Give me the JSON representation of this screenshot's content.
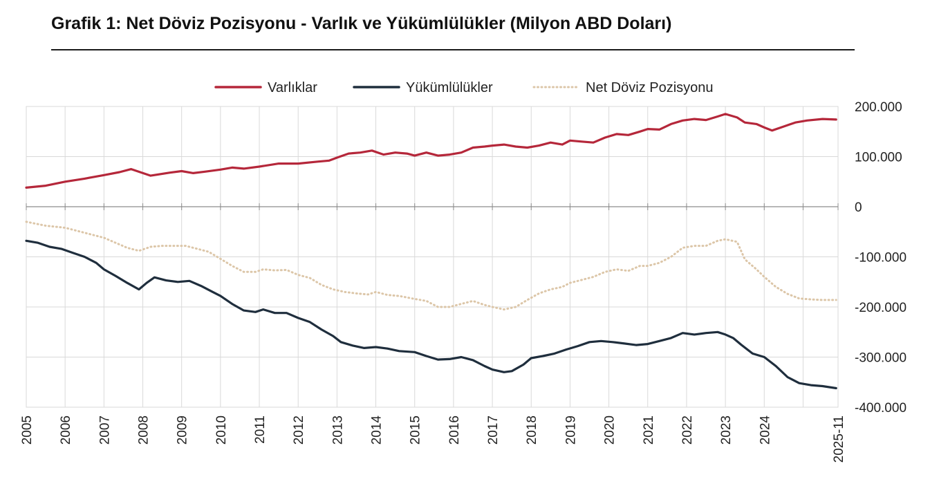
{
  "chart_data": {
    "type": "line",
    "title": "Grafik 1: Net Döviz Pozisyonu - Varlık ve Yükümlülükler (Milyon ABD Doları)",
    "xlabel": "",
    "ylabel": "",
    "x_tick_labels": [
      "2005",
      "2006",
      "2007",
      "2008",
      "2009",
      "2010",
      "2011",
      "2012",
      "2013",
      "2014",
      "2015",
      "2016",
      "2017",
      "2018",
      "2019",
      "2020",
      "2021",
      "2022",
      "2023",
      "2024",
      "2025-11"
    ],
    "y_tick_labels": [
      "200.000",
      "100.000",
      "0",
      "-100.000",
      "-200.000",
      "-300.000",
      "-400.000"
    ],
    "y_ticks": [
      200000,
      100000,
      0,
      -100000,
      -200000,
      -300000,
      -400000
    ],
    "ylim": [
      -400000,
      200000
    ],
    "xlim": [
      2005.0,
      2025.9
    ],
    "grid": true,
    "legend_position": "top",
    "series": [
      {
        "name": "Varlıklar",
        "color": "#b5273a",
        "style": "solid",
        "points": [
          [
            2005.0,
            38000
          ],
          [
            2005.5,
            42000
          ],
          [
            2006.0,
            50000
          ],
          [
            2006.5,
            56000
          ],
          [
            2007.0,
            63000
          ],
          [
            2007.4,
            69000
          ],
          [
            2007.7,
            75000
          ],
          [
            2008.2,
            62000
          ],
          [
            2008.7,
            68000
          ],
          [
            2009.0,
            71000
          ],
          [
            2009.3,
            67000
          ],
          [
            2009.6,
            70000
          ],
          [
            2010.0,
            74000
          ],
          [
            2010.3,
            78000
          ],
          [
            2010.6,
            76000
          ],
          [
            2011.0,
            80000
          ],
          [
            2011.5,
            86000
          ],
          [
            2012.0,
            86000
          ],
          [
            2012.5,
            90000
          ],
          [
            2012.8,
            92000
          ],
          [
            2013.0,
            98000
          ],
          [
            2013.3,
            106000
          ],
          [
            2013.6,
            108000
          ],
          [
            2013.9,
            112000
          ],
          [
            2014.2,
            104000
          ],
          [
            2014.5,
            108000
          ],
          [
            2014.8,
            106000
          ],
          [
            2015.0,
            102000
          ],
          [
            2015.3,
            108000
          ],
          [
            2015.6,
            102000
          ],
          [
            2015.9,
            104000
          ],
          [
            2016.2,
            108000
          ],
          [
            2016.5,
            118000
          ],
          [
            2016.8,
            120000
          ],
          [
            2017.0,
            122000
          ],
          [
            2017.3,
            124000
          ],
          [
            2017.6,
            120000
          ],
          [
            2017.9,
            118000
          ],
          [
            2018.2,
            122000
          ],
          [
            2018.5,
            128000
          ],
          [
            2018.8,
            124000
          ],
          [
            2019.0,
            132000
          ],
          [
            2019.3,
            130000
          ],
          [
            2019.6,
            128000
          ],
          [
            2019.9,
            138000
          ],
          [
            2020.2,
            145000
          ],
          [
            2020.5,
            143000
          ],
          [
            2020.8,
            150000
          ],
          [
            2021.0,
            155000
          ],
          [
            2021.3,
            154000
          ],
          [
            2021.6,
            165000
          ],
          [
            2021.9,
            172000
          ],
          [
            2022.2,
            175000
          ],
          [
            2022.5,
            173000
          ],
          [
            2022.8,
            180000
          ],
          [
            2023.0,
            185000
          ],
          [
            2023.3,
            178000
          ],
          [
            2023.5,
            168000
          ],
          [
            2023.8,
            165000
          ],
          [
            2024.0,
            158000
          ],
          [
            2024.2,
            152000
          ],
          [
            2024.5,
            160000
          ],
          [
            2024.8,
            168000
          ],
          [
            2025.1,
            172000
          ],
          [
            2025.5,
            175000
          ],
          [
            2025.85,
            174000
          ]
        ]
      },
      {
        "name": "Yükümlülükler",
        "color": "#1f2e3d",
        "style": "solid",
        "points": [
          [
            2005.0,
            -68000
          ],
          [
            2005.3,
            -72000
          ],
          [
            2005.6,
            -80000
          ],
          [
            2005.9,
            -84000
          ],
          [
            2006.2,
            -92000
          ],
          [
            2006.5,
            -100000
          ],
          [
            2006.8,
            -112000
          ],
          [
            2007.0,
            -125000
          ],
          [
            2007.3,
            -138000
          ],
          [
            2007.6,
            -152000
          ],
          [
            2007.9,
            -165000
          ],
          [
            2008.1,
            -152000
          ],
          [
            2008.3,
            -141000
          ],
          [
            2008.6,
            -147000
          ],
          [
            2008.9,
            -150000
          ],
          [
            2009.2,
            -148000
          ],
          [
            2009.5,
            -158000
          ],
          [
            2009.8,
            -170000
          ],
          [
            2010.0,
            -178000
          ],
          [
            2010.3,
            -194000
          ],
          [
            2010.6,
            -207000
          ],
          [
            2010.9,
            -210000
          ],
          [
            2011.1,
            -205000
          ],
          [
            2011.4,
            -212000
          ],
          [
            2011.7,
            -212000
          ],
          [
            2012.0,
            -222000
          ],
          [
            2012.3,
            -230000
          ],
          [
            2012.6,
            -245000
          ],
          [
            2012.9,
            -258000
          ],
          [
            2013.1,
            -270000
          ],
          [
            2013.4,
            -277000
          ],
          [
            2013.7,
            -282000
          ],
          [
            2014.0,
            -280000
          ],
          [
            2014.3,
            -283000
          ],
          [
            2014.6,
            -288000
          ],
          [
            2015.0,
            -290000
          ],
          [
            2015.3,
            -298000
          ],
          [
            2015.6,
            -305000
          ],
          [
            2015.9,
            -304000
          ],
          [
            2016.2,
            -300000
          ],
          [
            2016.5,
            -306000
          ],
          [
            2016.8,
            -318000
          ],
          [
            2017.0,
            -325000
          ],
          [
            2017.3,
            -330000
          ],
          [
            2017.5,
            -328000
          ],
          [
            2017.8,
            -315000
          ],
          [
            2018.0,
            -302000
          ],
          [
            2018.3,
            -298000
          ],
          [
            2018.6,
            -293000
          ],
          [
            2018.9,
            -285000
          ],
          [
            2019.2,
            -278000
          ],
          [
            2019.5,
            -270000
          ],
          [
            2019.8,
            -268000
          ],
          [
            2020.1,
            -270000
          ],
          [
            2020.4,
            -273000
          ],
          [
            2020.7,
            -276000
          ],
          [
            2021.0,
            -274000
          ],
          [
            2021.3,
            -268000
          ],
          [
            2021.6,
            -262000
          ],
          [
            2021.9,
            -252000
          ],
          [
            2022.2,
            -255000
          ],
          [
            2022.5,
            -252000
          ],
          [
            2022.8,
            -250000
          ],
          [
            2023.0,
            -255000
          ],
          [
            2023.2,
            -262000
          ],
          [
            2023.4,
            -275000
          ],
          [
            2023.7,
            -293000
          ],
          [
            2024.0,
            -300000
          ],
          [
            2024.3,
            -318000
          ],
          [
            2024.6,
            -340000
          ],
          [
            2024.9,
            -352000
          ],
          [
            2025.2,
            -356000
          ],
          [
            2025.5,
            -358000
          ],
          [
            2025.85,
            -362000
          ]
        ]
      },
      {
        "name": "Net Döviz Pozisyonu",
        "color": "#dcc6a8",
        "style": "dotted",
        "points": [
          [
            2005.0,
            -30000
          ],
          [
            2005.5,
            -38000
          ],
          [
            2006.0,
            -42000
          ],
          [
            2006.5,
            -52000
          ],
          [
            2007.0,
            -62000
          ],
          [
            2007.3,
            -72000
          ],
          [
            2007.6,
            -82000
          ],
          [
            2007.9,
            -88000
          ],
          [
            2008.2,
            -80000
          ],
          [
            2008.5,
            -78000
          ],
          [
            2008.8,
            -78000
          ],
          [
            2009.1,
            -78000
          ],
          [
            2009.4,
            -84000
          ],
          [
            2009.7,
            -90000
          ],
          [
            2010.0,
            -104000
          ],
          [
            2010.3,
            -118000
          ],
          [
            2010.6,
            -130000
          ],
          [
            2010.9,
            -130000
          ],
          [
            2011.1,
            -125000
          ],
          [
            2011.4,
            -127000
          ],
          [
            2011.7,
            -126000
          ],
          [
            2012.0,
            -136000
          ],
          [
            2012.3,
            -142000
          ],
          [
            2012.6,
            -156000
          ],
          [
            2012.9,
            -165000
          ],
          [
            2013.2,
            -170000
          ],
          [
            2013.5,
            -173000
          ],
          [
            2013.8,
            -175000
          ],
          [
            2014.0,
            -170000
          ],
          [
            2014.3,
            -176000
          ],
          [
            2014.6,
            -178000
          ],
          [
            2015.0,
            -184000
          ],
          [
            2015.3,
            -188000
          ],
          [
            2015.6,
            -200000
          ],
          [
            2015.9,
            -200000
          ],
          [
            2016.2,
            -194000
          ],
          [
            2016.5,
            -188000
          ],
          [
            2016.8,
            -196000
          ],
          [
            2017.0,
            -200000
          ],
          [
            2017.3,
            -205000
          ],
          [
            2017.6,
            -200000
          ],
          [
            2017.9,
            -186000
          ],
          [
            2018.2,
            -173000
          ],
          [
            2018.5,
            -165000
          ],
          [
            2018.8,
            -160000
          ],
          [
            2019.0,
            -152000
          ],
          [
            2019.3,
            -146000
          ],
          [
            2019.6,
            -140000
          ],
          [
            2019.9,
            -130000
          ],
          [
            2020.2,
            -125000
          ],
          [
            2020.5,
            -128000
          ],
          [
            2020.8,
            -118000
          ],
          [
            2021.0,
            -118000
          ],
          [
            2021.3,
            -112000
          ],
          [
            2021.6,
            -100000
          ],
          [
            2021.9,
            -82000
          ],
          [
            2022.2,
            -78000
          ],
          [
            2022.5,
            -78000
          ],
          [
            2022.8,
            -68000
          ],
          [
            2023.0,
            -65000
          ],
          [
            2023.3,
            -70000
          ],
          [
            2023.5,
            -105000
          ],
          [
            2023.8,
            -125000
          ],
          [
            2024.0,
            -140000
          ],
          [
            2024.3,
            -160000
          ],
          [
            2024.6,
            -174000
          ],
          [
            2024.9,
            -183000
          ],
          [
            2025.2,
            -185000
          ],
          [
            2025.5,
            -186000
          ],
          [
            2025.85,
            -186000
          ]
        ]
      }
    ]
  }
}
